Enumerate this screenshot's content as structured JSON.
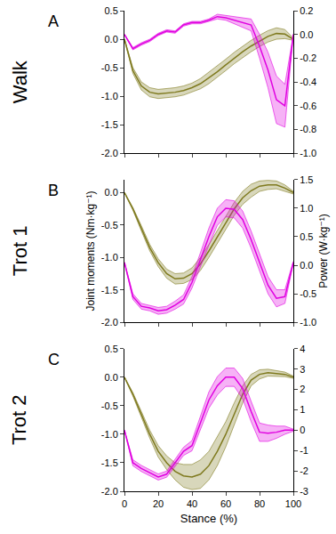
{
  "chart_data": [
    {
      "type": "line",
      "title": "A",
      "subtitle": "Walk",
      "grid": false,
      "tick_labels": "y",
      "x": [
        0,
        5,
        10,
        15,
        20,
        25,
        30,
        35,
        40,
        45,
        50,
        55,
        60,
        65,
        70,
        75,
        80,
        85,
        90,
        95,
        100
      ],
      "xlim": [
        0,
        100
      ],
      "xticks": [
        0,
        20,
        40,
        60,
        80,
        100
      ],
      "ylim": [
        -2.0,
        0.5
      ],
      "yticks": [
        {
          "value": -2.0,
          "label": "-2.0"
        },
        {
          "value": -1.5,
          "label": "-1.5"
        },
        {
          "value": -1.0,
          "label": "-1.0"
        },
        {
          "value": -0.5,
          "label": "-0.5"
        },
        {
          "value": 0.0,
          "label": "0.0"
        },
        0.5
      ],
      "y2lim": [
        -1.0,
        0.2
      ],
      "y2ticks": [
        {
          "value": -1.0,
          "label": "-1.0"
        },
        -0.8,
        -0.6,
        -0.4,
        -0.2,
        {
          "value": 0.0,
          "label": "0.0"
        },
        0.2
      ],
      "series": [
        {
          "color": "#7f7a1f",
          "values": [
            0,
            -0.55,
            -0.82,
            -0.93,
            -0.96,
            -0.95,
            -0.93,
            -0.9,
            -0.85,
            -0.78,
            -0.68,
            -0.57,
            -0.45,
            -0.33,
            -0.22,
            -0.12,
            -0.03,
            0.05,
            0.1,
            0.09,
            0.0
          ],
          "error": [
            0,
            0.05,
            0.07,
            0.08,
            0.08,
            0.08,
            0.08,
            0.08,
            0.08,
            0.09,
            0.1,
            0.1,
            0.1,
            0.1,
            0.1,
            0.1,
            0.1,
            0.1,
            0.1,
            0.08,
            0.02
          ]
        },
        {
          "color": "#e000e0",
          "axis": "y2",
          "values": [
            0,
            -0.12,
            -0.08,
            -0.05,
            0.0,
            0.03,
            0.02,
            0.08,
            0.1,
            0.1,
            0.12,
            0.15,
            0.14,
            0.12,
            0.1,
            0.08,
            -0.1,
            -0.3,
            -0.55,
            -0.6,
            0.0
          ],
          "error": [
            0,
            0.01,
            0.01,
            0.01,
            0.01,
            0.01,
            0.01,
            0.01,
            0.01,
            0.01,
            0.01,
            0.02,
            0.02,
            0.03,
            0.04,
            0.05,
            0.1,
            0.15,
            0.2,
            0.18,
            0
          ]
        }
      ]
    },
    {
      "type": "line",
      "title": "B",
      "subtitle": "Trot 1",
      "grid": false,
      "tick_labels": "y",
      "y_label": "Joint moments (Nm·kg⁻¹)",
      "y2_label": "Power (W·kg⁻¹)",
      "x": [
        0,
        5,
        10,
        15,
        20,
        25,
        30,
        35,
        40,
        45,
        50,
        55,
        60,
        65,
        70,
        75,
        80,
        85,
        90,
        95,
        100
      ],
      "xlim": [
        0,
        100
      ],
      "xticks": [
        0,
        20,
        40,
        60,
        80,
        100
      ],
      "ylim": [
        -2.0,
        0.2
      ],
      "yticks": [
        {
          "value": -2.0,
          "label": "-2.0"
        },
        {
          "value": -1.5,
          "label": "-1.5"
        },
        {
          "value": -1.0,
          "label": "-1.0"
        },
        {
          "value": -0.5,
          "label": "-0.5"
        },
        {
          "value": 0.0,
          "label": "0.0"
        }
      ],
      "y2lim": [
        -1.0,
        1.5
      ],
      "y2ticks": [
        {
          "value": -1.0,
          "label": "-1.0"
        },
        -0.5,
        {
          "value": 0.0,
          "label": "0.0"
        },
        0.5,
        {
          "value": 1.0,
          "label": "1.0"
        },
        1.5
      ],
      "series": [
        {
          "color": "#7f7a1f",
          "values": [
            0,
            -0.25,
            -0.55,
            -0.85,
            -1.08,
            -1.25,
            -1.33,
            -1.32,
            -1.25,
            -1.1,
            -0.9,
            -0.68,
            -0.45,
            -0.25,
            -0.08,
            0.03,
            0.1,
            0.12,
            0.12,
            0.07,
            0.0
          ],
          "error": [
            0,
            0.02,
            0.04,
            0.05,
            0.06,
            0.07,
            0.08,
            0.08,
            0.09,
            0.1,
            0.1,
            0.1,
            0.1,
            0.1,
            0.1,
            0.1,
            0.08,
            0.07,
            0.06,
            0.05,
            0.02
          ]
        },
        {
          "color": "#e000e0",
          "axis": "y2",
          "values": [
            0.05,
            -0.55,
            -0.72,
            -0.75,
            -0.8,
            -0.78,
            -0.7,
            -0.6,
            -0.3,
            0.1,
            0.5,
            0.85,
            1.0,
            0.98,
            0.8,
            0.45,
            0.05,
            -0.35,
            -0.58,
            -0.55,
            0.05
          ],
          "error": [
            0,
            0.05,
            0.05,
            0.05,
            0.06,
            0.06,
            0.07,
            0.08,
            0.1,
            0.12,
            0.15,
            0.15,
            0.15,
            0.15,
            0.15,
            0.15,
            0.15,
            0.15,
            0.15,
            0.12,
            0.02
          ]
        }
      ]
    },
    {
      "type": "line",
      "title": "C",
      "subtitle": "Trot 2",
      "grid": false,
      "x_label": "Stance (%)",
      "x": [
        0,
        5,
        10,
        15,
        20,
        25,
        30,
        35,
        40,
        45,
        50,
        55,
        60,
        65,
        70,
        75,
        80,
        85,
        90,
        95,
        100
      ],
      "xlim": [
        0,
        100
      ],
      "xticks": [
        0,
        20,
        40,
        60,
        80,
        100
      ],
      "ylim": [
        -2.0,
        0.5
      ],
      "yticks": [
        {
          "value": -2.0,
          "label": "-2.0"
        },
        {
          "value": -1.5,
          "label": "-1.5"
        },
        {
          "value": -1.0,
          "label": "-1.0"
        },
        {
          "value": -0.5,
          "label": "-0.5"
        },
        {
          "value": 0.0,
          "label": "0.0"
        },
        0.5
      ],
      "y2lim": [
        -3,
        4
      ],
      "y2ticks": [
        -3,
        -2,
        -1,
        0,
        1,
        2,
        3,
        4
      ],
      "series": [
        {
          "color": "#7f7a1f",
          "values": [
            0,
            -0.3,
            -0.65,
            -1.0,
            -1.3,
            -1.5,
            -1.65,
            -1.73,
            -1.75,
            -1.7,
            -1.55,
            -1.3,
            -1.0,
            -0.65,
            -0.3,
            -0.05,
            0.05,
            0.08,
            0.07,
            0.05,
            0.0
          ],
          "error": [
            0,
            0.03,
            0.05,
            0.07,
            0.1,
            0.12,
            0.15,
            0.2,
            0.22,
            0.25,
            0.25,
            0.25,
            0.22,
            0.2,
            0.15,
            0.1,
            0.08,
            0.06,
            0.05,
            0.04,
            0.02
          ]
        },
        {
          "color": "#e000e0",
          "axis": "y2",
          "values": [
            0,
            -1.6,
            -1.88,
            -2.1,
            -2.3,
            -2.16,
            -1.6,
            -1.04,
            -0.76,
            0.36,
            1.48,
            2.18,
            2.6,
            2.6,
            2.04,
            0.92,
            -0.1,
            -0.15,
            -0.1,
            0.0,
            0.0
          ],
          "error": [
            0,
            0.15,
            0.15,
            0.15,
            0.15,
            0.15,
            0.2,
            0.2,
            0.25,
            0.35,
            0.4,
            0.45,
            0.45,
            0.45,
            0.5,
            0.5,
            0.45,
            0.4,
            0.3,
            0.2,
            0.05
          ]
        }
      ]
    }
  ]
}
